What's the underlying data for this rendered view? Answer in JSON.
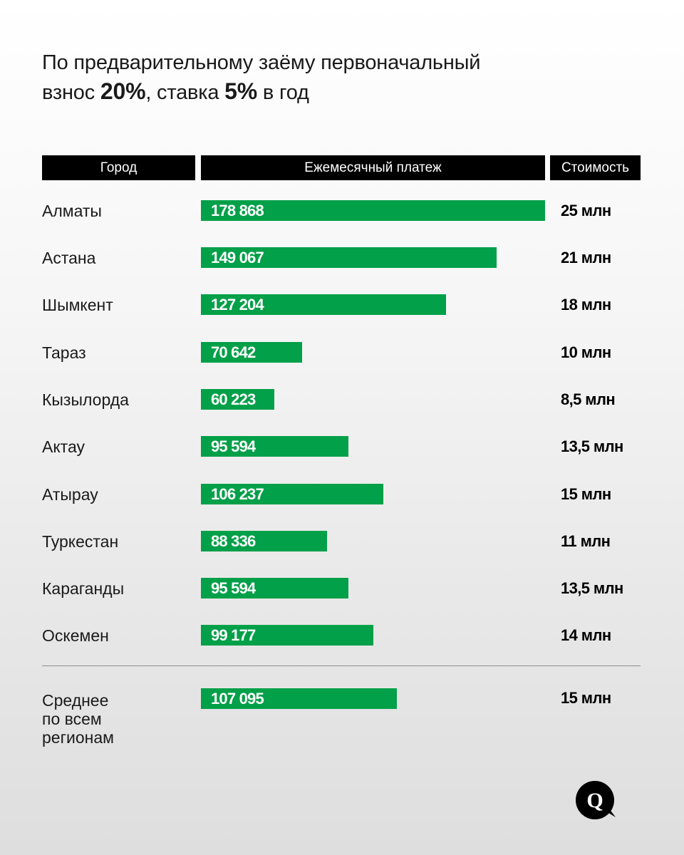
{
  "title": {
    "line1": "По предварительному заёму первоначальный",
    "line2_pre": "взнос ",
    "line2_bold1": "20%",
    "line2_mid": ", ставка ",
    "line2_bold2": "5%",
    "line2_post": " в год"
  },
  "headers": {
    "city": "Город",
    "payment": "Ежемесячный платеж",
    "cost": "Стоимость"
  },
  "rows": [
    {
      "city": "Алматы",
      "payment": "178 868",
      "cost": "25 млн"
    },
    {
      "city": "Астана",
      "payment": "149 067",
      "cost": "21 млн"
    },
    {
      "city": "Шымкент",
      "payment": "127 204",
      "cost": "18 млн"
    },
    {
      "city": "Тараз",
      "payment": "70 642",
      "cost": "10 млн"
    },
    {
      "city": "Кызылорда",
      "payment": "60 223",
      "cost": "8,5 млн"
    },
    {
      "city": "Актау",
      "payment": "95 594",
      "cost": "13,5 млн"
    },
    {
      "city": "Атырау",
      "payment": "106 237",
      "cost": "15 млн"
    },
    {
      "city": "Туркестан",
      "payment": "88 336",
      "cost": "11 млн"
    },
    {
      "city": "Караганды",
      "payment": "95 594",
      "cost": "13,5 млн"
    },
    {
      "city": "Оскемен",
      "payment": "99 177",
      "cost": "14 млн"
    }
  ],
  "average": {
    "line1": "Среднее",
    "line2": "по всем",
    "line3": "регионам",
    "payment": "107 095",
    "cost": "15 млн"
  },
  "logo": {
    "letter": "Q",
    "icon": "speech-bubble-q-logo"
  },
  "colors": {
    "bar": "#02a048",
    "header_bg": "#000000",
    "text": "#111111"
  },
  "chart_data": {
    "type": "bar",
    "orientation": "horizontal",
    "title": "По предварительному заёму первоначальный взнос 20%, ставка 5% в год",
    "xlabel": "Ежемесячный платеж",
    "ylabel": "Город",
    "categories": [
      "Алматы",
      "Астана",
      "Шымкент",
      "Тараз",
      "Кызылорда",
      "Актау",
      "Атырау",
      "Туркестан",
      "Караганды",
      "Оскемен",
      "Среднее по всем регионам"
    ],
    "series": [
      {
        "name": "Ежемесячный платеж",
        "values": [
          178868,
          149067,
          127204,
          70642,
          60223,
          95594,
          106237,
          88336,
          95594,
          99177,
          107095
        ]
      },
      {
        "name": "Стоимость (млн)",
        "values": [
          25,
          21,
          18,
          10,
          8.5,
          13.5,
          15,
          11,
          13.5,
          14,
          15
        ]
      }
    ],
    "grid": false,
    "legend": "none"
  }
}
